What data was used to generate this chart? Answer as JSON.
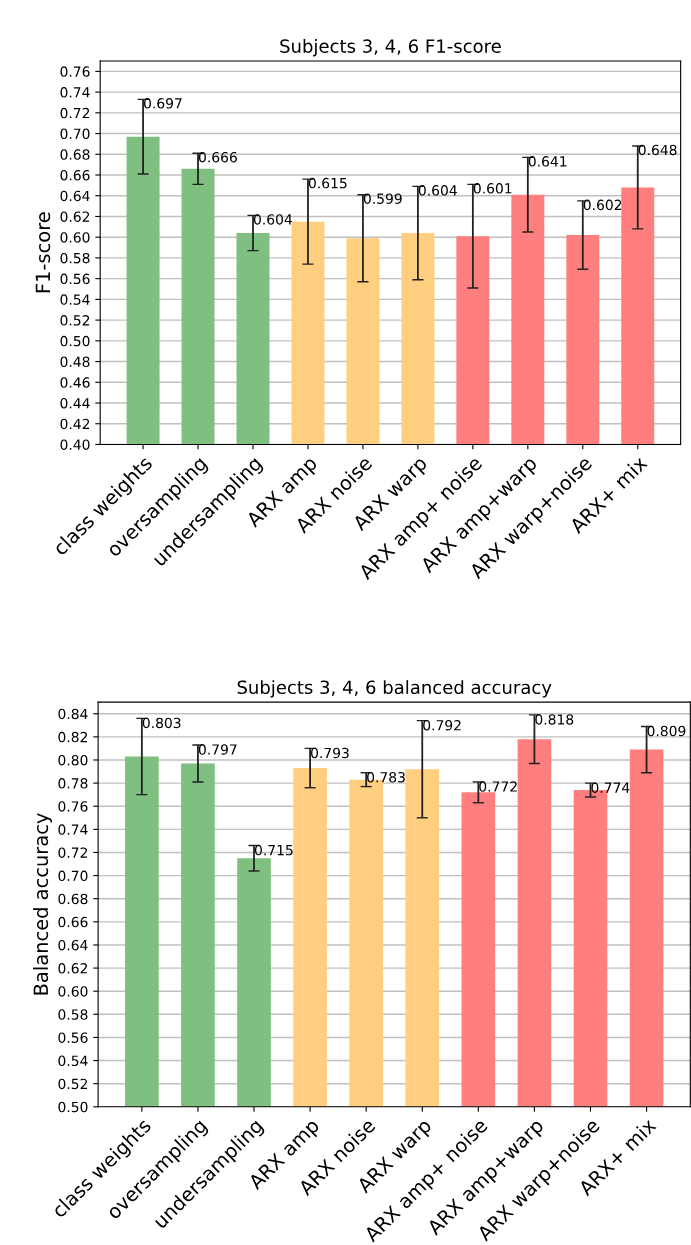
{
  "chart_data": [
    {
      "type": "bar",
      "title": "Subjects 3, 4, 6 F1-score",
      "ylabel": "F1-score",
      "categories": [
        "class weights",
        "oversampling",
        "undersampling",
        "ARX amp",
        "ARX noise",
        "ARX warp",
        "ARX amp+ noise",
        "ARX amp+warp",
        "ARX warp+noise",
        "ARX+ mix"
      ],
      "values": [
        0.697,
        0.666,
        0.604,
        0.615,
        0.599,
        0.604,
        0.601,
        0.641,
        0.602,
        0.648
      ],
      "errors": [
        0.036,
        0.015,
        0.017,
        0.041,
        0.042,
        0.045,
        0.05,
        0.036,
        0.033,
        0.04
      ],
      "colors": [
        "#7fbf7f",
        "#7fbf7f",
        "#7fbf7f",
        "#ffcf7f",
        "#ffcf7f",
        "#ffcf7f",
        "#ff7f7f",
        "#ff7f7f",
        "#ff7f7f",
        "#ff7f7f"
      ],
      "ylim": [
        0.4,
        0.77
      ],
      "yticks": [
        {
          "value": 0.4,
          "label": "0.40"
        },
        0.42,
        0.44,
        0.46,
        0.48,
        {
          "value": 0.5,
          "label": "0.50"
        },
        0.52,
        0.54,
        0.56,
        0.58,
        {
          "value": 0.6,
          "label": "0.60"
        },
        0.62,
        0.64,
        0.66,
        0.68,
        {
          "value": 0.7,
          "label": "0.70"
        },
        0.72,
        0.74,
        0.76
      ],
      "data_labels": true,
      "grid": "y"
    },
    {
      "type": "bar",
      "title": "Subjects 3, 4, 6 balanced accuracy",
      "ylabel": "Balanced accuracy",
      "categories": [
        "class weights",
        "oversampling",
        "undersampling",
        "ARX amp",
        "ARX noise",
        "ARX warp",
        "ARX amp+ noise",
        "ARX amp+warp",
        "ARX warp+noise",
        "ARX+ mix"
      ],
      "values": [
        0.803,
        0.797,
        0.715,
        0.793,
        0.783,
        0.792,
        0.772,
        0.818,
        0.774,
        0.809
      ],
      "errors": [
        0.033,
        0.016,
        0.011,
        0.017,
        0.006,
        0.042,
        0.009,
        0.021,
        0.006,
        0.02
      ],
      "colors": [
        "#7fbf7f",
        "#7fbf7f",
        "#7fbf7f",
        "#ffcf7f",
        "#ffcf7f",
        "#ffcf7f",
        "#ff7f7f",
        "#ff7f7f",
        "#ff7f7f",
        "#ff7f7f"
      ],
      "ylim": [
        0.5,
        0.85
      ],
      "yticks": [
        {
          "value": 0.5,
          "label": "0.50"
        },
        0.52,
        0.54,
        0.56,
        0.58,
        {
          "value": 0.6,
          "label": "0.60"
        },
        0.62,
        0.64,
        0.66,
        0.68,
        {
          "value": 0.7,
          "label": "0.70"
        },
        0.72,
        0.74,
        0.76,
        0.78,
        {
          "value": 0.8,
          "label": "0.80"
        },
        0.82,
        0.84
      ],
      "data_labels": true,
      "grid": "y"
    }
  ]
}
